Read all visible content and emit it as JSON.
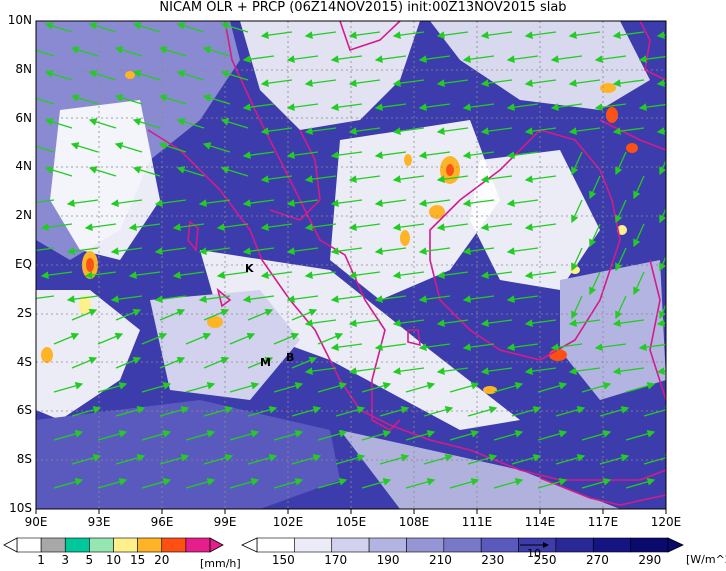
{
  "title": "NICAM OLR + PRCP (06Z14NOV2015) init:00Z13NOV2015 slab",
  "x_ticks": [
    "90E",
    "93E",
    "96E",
    "99E",
    "102E",
    "105E",
    "108E",
    "111E",
    "114E",
    "117E",
    "120E"
  ],
  "y_ticks": [
    "10N",
    "8N",
    "6N",
    "4N",
    "2N",
    "EQ",
    "2S",
    "4S",
    "6S",
    "8S",
    "10S"
  ],
  "sites": [
    {
      "label": "K",
      "lon": 100.4,
      "lat": -0.2
    },
    {
      "label": "M",
      "lon": 100.3,
      "lat": -4.0
    },
    {
      "label": "B",
      "lon": 102.3,
      "lat": -3.8
    }
  ],
  "precip_colorbar": {
    "ticks": [
      "1",
      "3",
      "5",
      "10",
      "15",
      "20"
    ],
    "unit": "[mm/h]",
    "colors": [
      "#ffffff",
      "#a8a8a8",
      "#00c89a",
      "#96e6b4",
      "#fff08c",
      "#ffb428",
      "#ff5014",
      "#e61e8c"
    ]
  },
  "olr_colorbar": {
    "ticks": [
      "150",
      "170",
      "190",
      "210",
      "230",
      "250",
      "270",
      "290"
    ],
    "unit": "[W/m^2]",
    "colors": [
      "#ffffff",
      "#ececf8",
      "#d2d2ee",
      "#b4b4e2",
      "#9696d6",
      "#7878c8",
      "#5a5abe",
      "#3c3cac",
      "#282896",
      "#141482",
      "#0a0a6e"
    ],
    "vector_ref": "10"
  },
  "colors": {
    "coast": "#d21c8c",
    "wind": "#22cc22",
    "background_olr": "#3636a8"
  }
}
